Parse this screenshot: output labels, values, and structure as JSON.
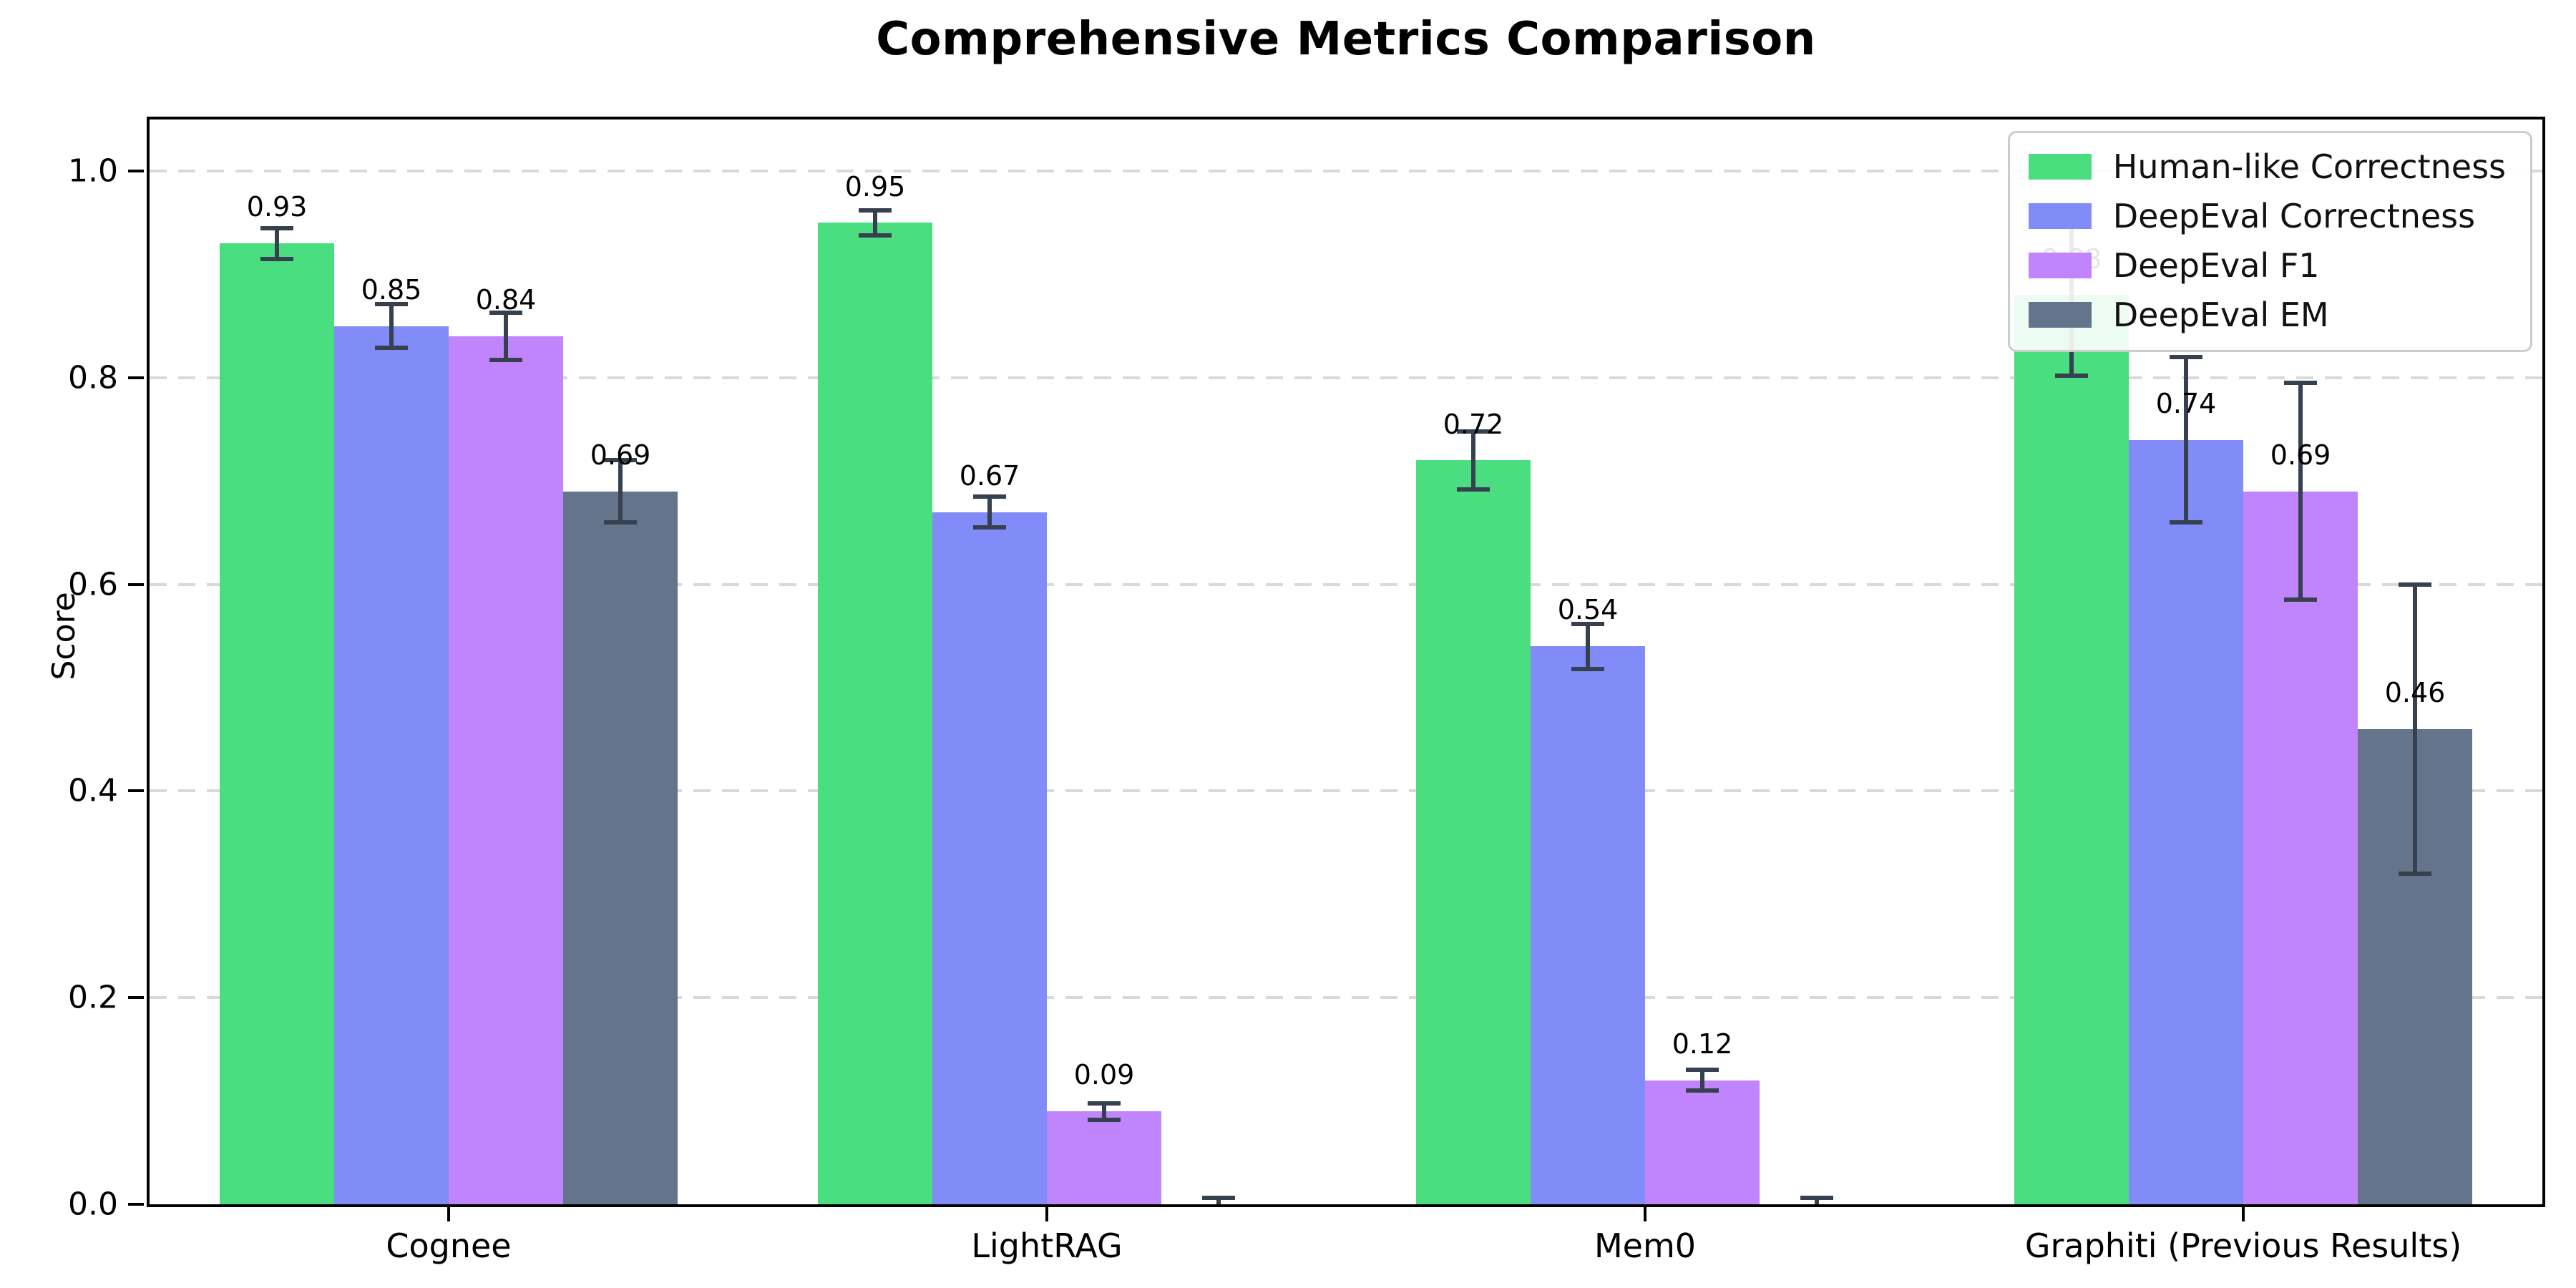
{
  "chart_data": {
    "type": "bar",
    "title": "Comprehensive Metrics Comparison",
    "ylabel": "Score",
    "xlabel": "",
    "categories": [
      "Cognee",
      "LightRAG",
      "Mem0",
      "Graphiti (Previous Results)"
    ],
    "series": [
      {
        "name": "Human-like Correctness",
        "color": "#4ade80",
        "values": [
          0.93,
          0.95,
          0.72,
          0.88
        ],
        "errors": [
          0.015,
          0.012,
          0.028,
          0.078
        ],
        "labels": [
          "0.93",
          "0.95",
          "0.72",
          "0.88"
        ]
      },
      {
        "name": "DeepEval Correctness",
        "color": "#818cf8",
        "values": [
          0.85,
          0.67,
          0.54,
          0.74
        ],
        "errors": [
          0.021,
          0.015,
          0.022,
          0.08
        ],
        "labels": [
          "0.85",
          "0.67",
          "0.54",
          "0.74"
        ]
      },
      {
        "name": "DeepEval F1",
        "color": "#c084fc",
        "values": [
          0.84,
          0.09,
          0.12,
          0.69
        ],
        "errors": [
          0.023,
          0.008,
          0.01,
          0.105
        ],
        "labels": [
          "0.84",
          "0.09",
          "0.12",
          "0.69"
        ]
      },
      {
        "name": "DeepEval EM",
        "color": "#64748b",
        "values": [
          0.69,
          0.0,
          0.0,
          0.46
        ],
        "errors": [
          0.03,
          0.006,
          0.006,
          0.14
        ],
        "labels": [
          "0.69",
          "",
          "",
          "0.46"
        ]
      }
    ],
    "ylim": [
      0,
      1.05
    ],
    "yticks": [
      {
        "value": 0.0,
        "label": "0.0"
      },
      {
        "value": 0.2,
        "label": "0.2"
      },
      {
        "value": 0.4,
        "label": "0.4"
      },
      {
        "value": 0.6,
        "label": "0.6"
      },
      {
        "value": 0.8,
        "label": "0.8"
      },
      {
        "value": 1.0,
        "label": "1.0"
      }
    ],
    "grid": "horizontal-dashed",
    "legend_position": "upper right",
    "error_bar_color": "#36404f",
    "grid_color": "#d9d9d9"
  }
}
